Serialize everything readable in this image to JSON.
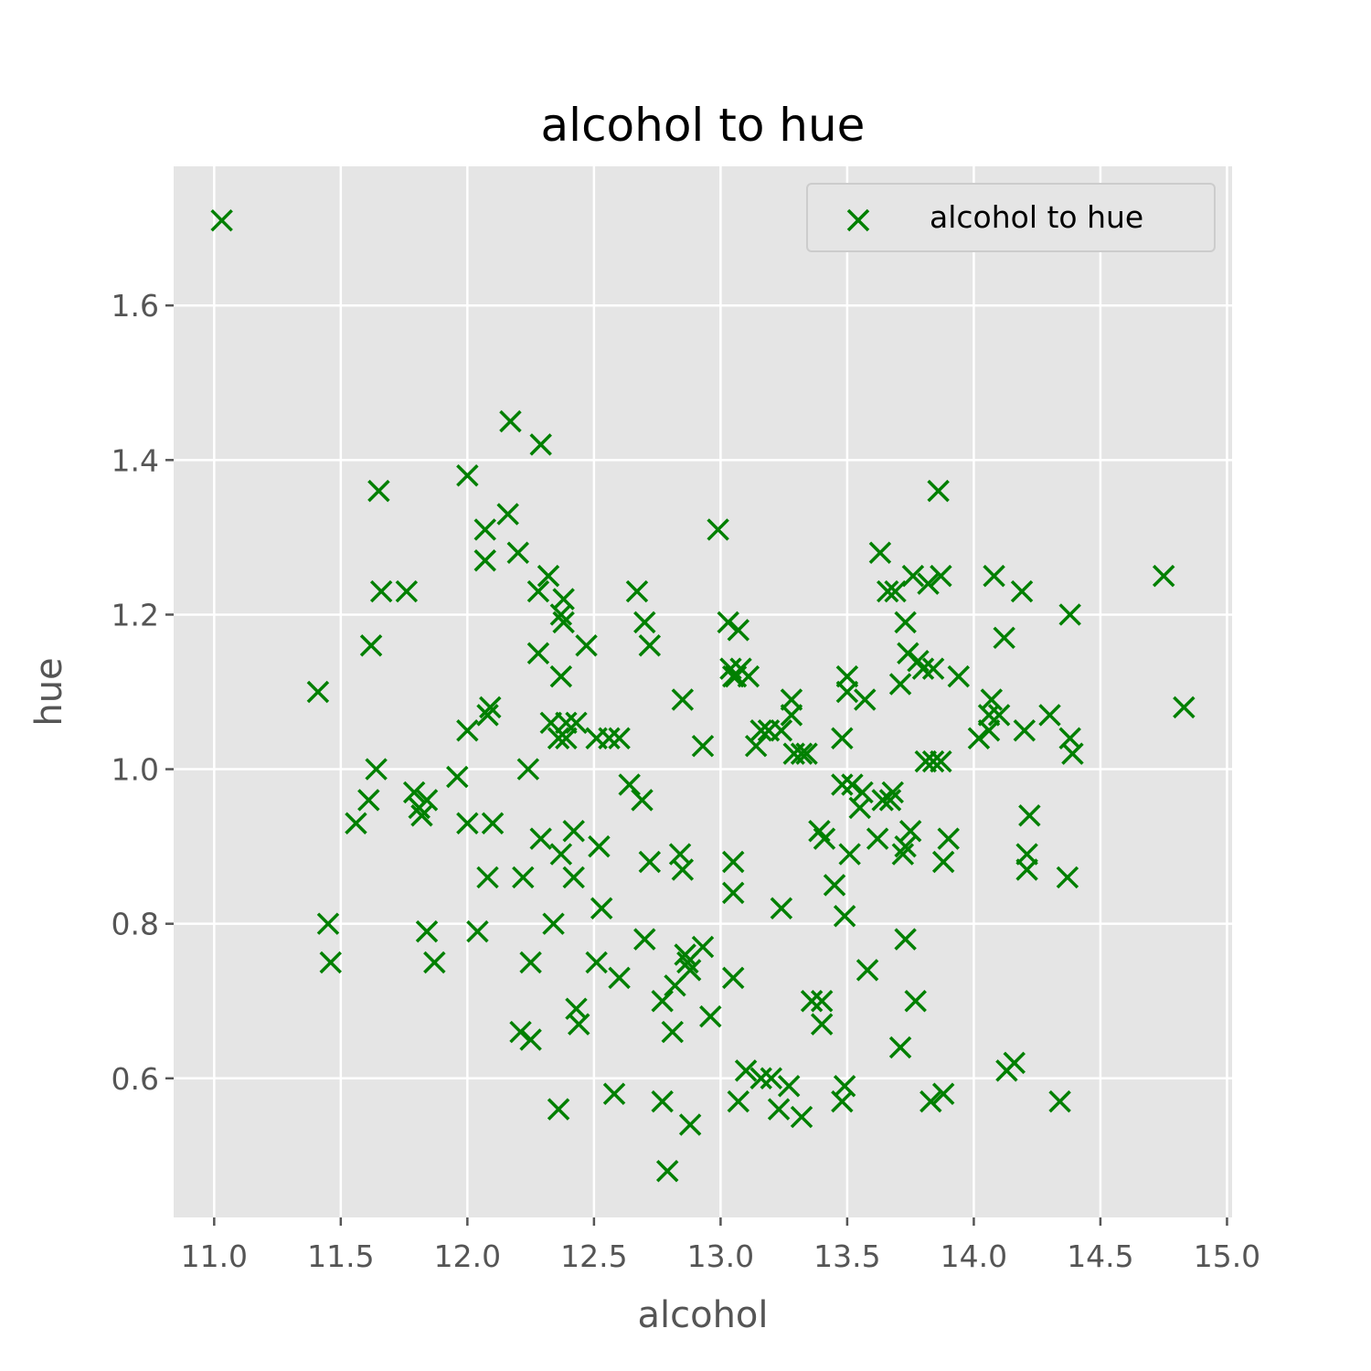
{
  "chart_data": {
    "type": "scatter",
    "title": "alcohol to hue",
    "xlabel": "alcohol",
    "ylabel": "hue",
    "xlim": [
      10.84,
      15.02
    ],
    "ylim": [
      0.42,
      1.78
    ],
    "xticks": [
      "11.0",
      "11.5",
      "12.0",
      "12.5",
      "13.0",
      "13.5",
      "14.0",
      "14.5",
      "15.0"
    ],
    "yticks": [
      "0.6",
      "0.8",
      "1.0",
      "1.2",
      "1.4",
      "1.6"
    ],
    "grid": true,
    "legend_position": "top-right",
    "background_color": "#e5e5e5",
    "marker": "x",
    "series": [
      {
        "name": "alcohol to hue",
        "color": "#008000",
        "points": [
          [
            11.03,
            1.71
          ],
          [
            11.41,
            1.1
          ],
          [
            11.45,
            0.8
          ],
          [
            11.46,
            0.75
          ],
          [
            11.56,
            0.93
          ],
          [
            11.61,
            0.96
          ],
          [
            11.62,
            1.16
          ],
          [
            11.64,
            1.0
          ],
          [
            11.65,
            1.36
          ],
          [
            11.66,
            1.23
          ],
          [
            11.76,
            1.23
          ],
          [
            11.79,
            0.97
          ],
          [
            11.81,
            0.95
          ],
          [
            11.82,
            0.94
          ],
          [
            11.84,
            0.96
          ],
          [
            11.84,
            0.79
          ],
          [
            11.87,
            0.75
          ],
          [
            11.96,
            0.99
          ],
          [
            12.0,
            1.38
          ],
          [
            12.0,
            1.05
          ],
          [
            12.0,
            0.93
          ],
          [
            12.04,
            0.79
          ],
          [
            12.07,
            1.31
          ],
          [
            12.07,
            1.27
          ],
          [
            12.08,
            1.07
          ],
          [
            12.08,
            0.86
          ],
          [
            12.09,
            1.08
          ],
          [
            12.1,
            0.93
          ],
          [
            12.16,
            1.33
          ],
          [
            12.17,
            1.45
          ],
          [
            12.2,
            1.28
          ],
          [
            12.21,
            0.66
          ],
          [
            12.22,
            0.86
          ],
          [
            12.24,
            1.0
          ],
          [
            12.25,
            0.75
          ],
          [
            12.25,
            0.65
          ],
          [
            12.28,
            1.23
          ],
          [
            12.28,
            1.15
          ],
          [
            12.29,
            0.91
          ],
          [
            12.29,
            1.42
          ],
          [
            12.32,
            1.25
          ],
          [
            12.33,
            1.06
          ],
          [
            12.34,
            0.8
          ],
          [
            12.36,
            1.04
          ],
          [
            12.36,
            0.56
          ],
          [
            12.37,
            0.89
          ],
          [
            12.37,
            1.2
          ],
          [
            12.37,
            1.12
          ],
          [
            12.38,
            1.19
          ],
          [
            12.38,
            1.22
          ],
          [
            12.39,
            1.06
          ],
          [
            12.39,
            1.04
          ],
          [
            12.42,
            0.92
          ],
          [
            12.42,
            0.86
          ],
          [
            12.43,
            1.06
          ],
          [
            12.43,
            0.69
          ],
          [
            12.44,
            0.67
          ],
          [
            12.47,
            1.16
          ],
          [
            12.51,
            1.04
          ],
          [
            12.51,
            0.75
          ],
          [
            12.52,
            0.9
          ],
          [
            12.53,
            0.82
          ],
          [
            12.56,
            1.04
          ],
          [
            12.58,
            0.58
          ],
          [
            12.6,
            0.73
          ],
          [
            12.6,
            1.04
          ],
          [
            12.64,
            0.98
          ],
          [
            12.67,
            1.23
          ],
          [
            12.69,
            0.96
          ],
          [
            12.7,
            0.78
          ],
          [
            12.7,
            1.19
          ],
          [
            12.72,
            1.16
          ],
          [
            12.72,
            0.88
          ],
          [
            12.77,
            0.7
          ],
          [
            12.77,
            0.57
          ],
          [
            12.79,
            0.48
          ],
          [
            12.81,
            0.66
          ],
          [
            12.82,
            0.72
          ],
          [
            12.84,
            0.89
          ],
          [
            12.85,
            0.87
          ],
          [
            12.85,
            1.09
          ],
          [
            12.86,
            0.76
          ],
          [
            12.87,
            0.75
          ],
          [
            12.88,
            0.74
          ],
          [
            12.88,
            0.54
          ],
          [
            12.93,
            0.77
          ],
          [
            12.93,
            1.03
          ],
          [
            12.96,
            0.68
          ],
          [
            12.99,
            1.31
          ],
          [
            13.03,
            1.19
          ],
          [
            13.04,
            1.13
          ],
          [
            13.05,
            1.12
          ],
          [
            13.05,
            0.88
          ],
          [
            13.05,
            0.84
          ],
          [
            13.05,
            0.73
          ],
          [
            13.06,
            1.12
          ],
          [
            13.07,
            0.57
          ],
          [
            13.07,
            1.18
          ],
          [
            13.08,
            1.13
          ],
          [
            13.1,
            0.61
          ],
          [
            13.11,
            1.12
          ],
          [
            13.14,
            1.03
          ],
          [
            13.16,
            0.6
          ],
          [
            13.16,
            1.05
          ],
          [
            13.19,
            1.05
          ],
          [
            13.2,
            0.6
          ],
          [
            13.23,
            0.56
          ],
          [
            13.24,
            1.05
          ],
          [
            13.24,
            0.82
          ],
          [
            13.27,
            0.59
          ],
          [
            13.28,
            1.09
          ],
          [
            13.28,
            1.07
          ],
          [
            13.29,
            1.02
          ],
          [
            13.32,
            0.55
          ],
          [
            13.32,
            1.02
          ],
          [
            13.34,
            1.02
          ],
          [
            13.36,
            0.7
          ],
          [
            13.39,
            0.92
          ],
          [
            13.4,
            0.7
          ],
          [
            13.4,
            0.67
          ],
          [
            13.41,
            0.91
          ],
          [
            13.45,
            0.85
          ],
          [
            13.48,
            1.04
          ],
          [
            13.48,
            0.98
          ],
          [
            13.48,
            0.57
          ],
          [
            13.49,
            0.81
          ],
          [
            13.49,
            0.59
          ],
          [
            13.5,
            1.1
          ],
          [
            13.5,
            1.12
          ],
          [
            13.51,
            0.89
          ],
          [
            13.52,
            0.98
          ],
          [
            13.55,
            0.95
          ],
          [
            13.56,
            0.97
          ],
          [
            13.57,
            1.09
          ],
          [
            13.58,
            0.74
          ],
          [
            13.62,
            0.91
          ],
          [
            13.63,
            1.28
          ],
          [
            13.64,
            0.96
          ],
          [
            13.66,
            1.23
          ],
          [
            13.67,
            0.96
          ],
          [
            13.68,
            0.97
          ],
          [
            13.69,
            1.23
          ],
          [
            13.71,
            1.11
          ],
          [
            13.71,
            0.64
          ],
          [
            13.72,
            0.89
          ],
          [
            13.73,
            0.9
          ],
          [
            13.73,
            0.78
          ],
          [
            13.73,
            1.19
          ],
          [
            13.74,
            1.15
          ],
          [
            13.75,
            0.92
          ],
          [
            13.76,
            1.25
          ],
          [
            13.77,
            0.7
          ],
          [
            13.78,
            1.14
          ],
          [
            13.8,
            1.13
          ],
          [
            13.81,
            1.01
          ],
          [
            13.82,
            1.24
          ],
          [
            13.83,
            0.57
          ],
          [
            13.84,
            1.01
          ],
          [
            13.84,
            1.13
          ],
          [
            13.86,
            1.36
          ],
          [
            13.87,
            1.01
          ],
          [
            13.87,
            1.25
          ],
          [
            13.88,
            0.58
          ],
          [
            13.88,
            0.88
          ],
          [
            13.9,
            0.91
          ],
          [
            13.94,
            1.12
          ],
          [
            14.02,
            1.04
          ],
          [
            14.06,
            1.07
          ],
          [
            14.06,
            1.05
          ],
          [
            14.07,
            1.09
          ],
          [
            14.08,
            1.25
          ],
          [
            14.1,
            1.07
          ],
          [
            14.12,
            1.17
          ],
          [
            14.13,
            0.61
          ],
          [
            14.16,
            0.62
          ],
          [
            14.19,
            1.23
          ],
          [
            14.2,
            1.05
          ],
          [
            14.21,
            0.89
          ],
          [
            14.21,
            0.87
          ],
          [
            14.22,
            0.94
          ],
          [
            14.3,
            1.07
          ],
          [
            14.34,
            0.57
          ],
          [
            14.37,
            0.86
          ],
          [
            14.38,
            1.04
          ],
          [
            14.38,
            1.2
          ],
          [
            14.39,
            1.02
          ],
          [
            14.75,
            1.25
          ],
          [
            14.83,
            1.08
          ]
        ]
      }
    ]
  }
}
